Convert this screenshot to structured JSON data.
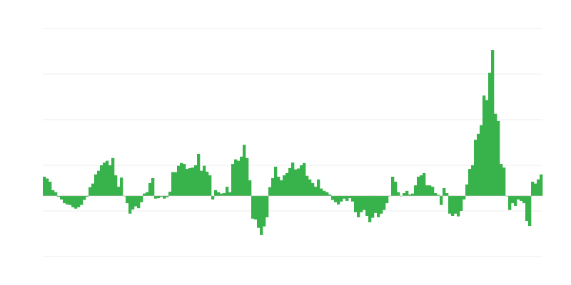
{
  "chart_data": {
    "type": "bar",
    "title": "",
    "xlabel": "",
    "ylabel": "",
    "grid": true,
    "ylim": [
      -13.3,
      36.7
    ],
    "gridlines": [
      -13.3,
      -3.3,
      6.7,
      16.7,
      26.7,
      36.7
    ],
    "bar_color": "#38b24a",
    "grid_color": "#eeeeee",
    "values": [
      4.2,
      3.8,
      3.1,
      1.25,
      0.8,
      -0.2,
      -0.8,
      -1.6,
      -1.9,
      -2,
      -2.5,
      -2.8,
      -2.5,
      -2,
      -0.9,
      -0.2,
      1.9,
      2.7,
      4.7,
      5.5,
      6.7,
      7.3,
      7.7,
      6.7,
      8.3,
      4.5,
      2,
      4,
      0,
      -1.6,
      -3.9,
      -3,
      -2.3,
      -2.7,
      -1.4,
      0.5,
      0.8,
      2.8,
      3.9,
      -0.6,
      -0.5,
      -0.2,
      -0.6,
      -0.3,
      0.9,
      5.2,
      5.2,
      6.6,
      7.2,
      7,
      5.9,
      6.1,
      6.2,
      6.7,
      9.2,
      5.5,
      6.6,
      5.3,
      4.5,
      -0.8,
      1.25,
      0.8,
      0.5,
      0.6,
      2,
      0.8,
      7,
      8,
      7.7,
      8.6,
      11.2,
      8.3,
      3.4,
      -5,
      -5.2,
      -7,
      -8.6,
      -6.7,
      -4.7,
      1.9,
      3.9,
      6.4,
      4.2,
      3.4,
      4.5,
      5,
      6.1,
      7.3,
      5.8,
      6,
      6.7,
      7.2,
      4.4,
      3.6,
      2.8,
      2,
      3.6,
      1.6,
      1.1,
      0.8,
      0.3,
      -0.9,
      -1.4,
      -1.9,
      -1.25,
      -0.6,
      -1.1,
      -0.5,
      -1.25,
      -3.6,
      -4.7,
      -3.6,
      -3.1,
      -4.4,
      -5.8,
      -4.8,
      -3.75,
      -4.7,
      -3.9,
      -3.1,
      -1.6,
      0,
      4.2,
      3.1,
      0.8,
      0,
      0.6,
      1.1,
      0.3,
      0.5,
      2.3,
      4.2,
      4.5,
      5,
      2.3,
      2.3,
      2,
      0.6,
      0.2,
      -2,
      1.7,
      0.6,
      -3.9,
      -4.4,
      -3.9,
      -4.5,
      -3.3,
      -0.8,
      2.5,
      5.9,
      6.7,
      12.3,
      13.6,
      15.5,
      22,
      21,
      27,
      32,
      18,
      16.4,
      7,
      6.2,
      0,
      -3.1,
      -1.6,
      -2.2,
      -0.8,
      -1.1,
      -1.6,
      -5.5,
      -6.6,
      3.1,
      2.7,
      3.6,
      4.7
    ]
  }
}
